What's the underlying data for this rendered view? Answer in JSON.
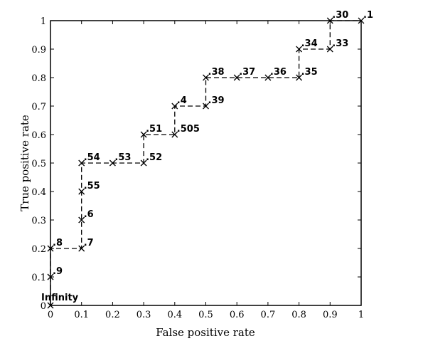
{
  "chart_data": {
    "type": "line",
    "title": "",
    "xlabel": "False positive rate",
    "ylabel": "True positive rate",
    "xlim": [
      0,
      1
    ],
    "ylim": [
      0,
      1
    ],
    "x_ticks": [
      "0",
      "0.1",
      "0.2",
      "0.3",
      "0.4",
      "0.5",
      "0.6",
      "0.7",
      "0.8",
      "0.9",
      "1"
    ],
    "y_ticks": [
      "0",
      "0.1",
      "0.2",
      "0.3",
      "0.4",
      "0.5",
      "0.6",
      "0.7",
      "0.8",
      "0.9",
      "1"
    ],
    "grid": false,
    "line_style": "dashed",
    "marker": "x",
    "points": [
      {
        "x": 0.0,
        "y": 0.0,
        "label": "Infinity"
      },
      {
        "x": 0.0,
        "y": 0.1,
        "label": ".9"
      },
      {
        "x": 0.0,
        "y": 0.2,
        "label": ".8"
      },
      {
        "x": 0.1,
        "y": 0.2,
        "label": ".7"
      },
      {
        "x": 0.1,
        "y": 0.3,
        "label": ".6"
      },
      {
        "x": 0.1,
        "y": 0.4,
        "label": ".55"
      },
      {
        "x": 0.1,
        "y": 0.5,
        "label": ".54"
      },
      {
        "x": 0.2,
        "y": 0.5,
        "label": ".53"
      },
      {
        "x": 0.3,
        "y": 0.5,
        "label": ".52"
      },
      {
        "x": 0.3,
        "y": 0.6,
        "label": ".51"
      },
      {
        "x": 0.4,
        "y": 0.6,
        "label": ".505"
      },
      {
        "x": 0.4,
        "y": 0.7,
        "label": ".4"
      },
      {
        "x": 0.5,
        "y": 0.7,
        "label": ".39"
      },
      {
        "x": 0.5,
        "y": 0.8,
        "label": ".38"
      },
      {
        "x": 0.6,
        "y": 0.8,
        "label": ".37"
      },
      {
        "x": 0.7,
        "y": 0.8,
        "label": ".36"
      },
      {
        "x": 0.8,
        "y": 0.8,
        "label": ".35"
      },
      {
        "x": 0.8,
        "y": 0.9,
        "label": ".34"
      },
      {
        "x": 0.9,
        "y": 0.9,
        "label": ".33"
      },
      {
        "x": 0.9,
        "y": 1.0,
        "label": ".30"
      },
      {
        "x": 1.0,
        "y": 1.0,
        "label": ".1"
      }
    ]
  }
}
